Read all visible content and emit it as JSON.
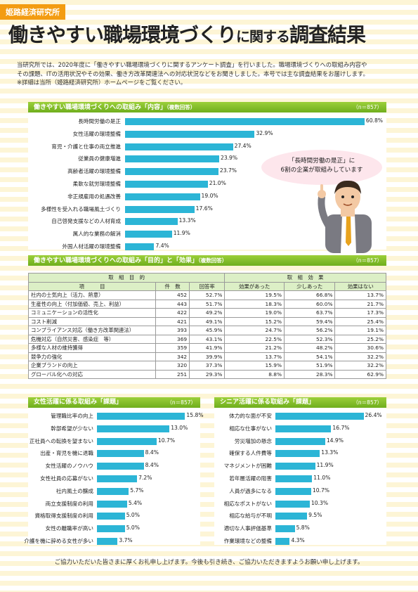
{
  "brand": "姫路経済研究所",
  "title": {
    "main": "働きやすい職場環境づくり",
    "mid": "に関する",
    "end": "調査結果"
  },
  "intro": [
    "当研究所では、2020年度に「働きやすい職場環境づくりに関するアンケート調査」を行いました。職場環境づくりへの取組み内容や",
    "その課題、ITの活用状況やその効果、働き方改革関連法への対応状況などをお聞きしました。本号では主な調査結果をお届けします。",
    "※詳細は当所（姫路経済研究所）ホームページをご覧ください。"
  ],
  "section1": {
    "heading": "働きやすい職場環境づくりへの取組み「内容」",
    "sub": "（複数回答）",
    "n": "（n＝857）",
    "bubble": {
      "line1": "「長時間労働の是正」に",
      "line2": "6割の企業が取組みしています"
    },
    "icon": "businessman-pointing-icon"
  },
  "section2": {
    "heading": "働きやすい職場環境づくりへの取組み「目的」と「効果」",
    "sub": "（複数回答）",
    "n": "（n＝857）",
    "group_purpose": "取　組　目　的",
    "group_effect": "取　組　効　果",
    "cols": [
      "項　　　目",
      "件　数",
      "回答率",
      "効果があった",
      "少しあった",
      "効果はない"
    ],
    "rows": [
      [
        "社内の士気向上（活力、熱意）",
        "452",
        "52.7%",
        "19.5%",
        "66.8%",
        "13.7%"
      ],
      [
        "生産性の向上（付加価値、売上、利益）",
        "443",
        "51.7%",
        "18.3%",
        "60.0%",
        "21.7%"
      ],
      [
        "コミュニケーションの活性化",
        "422",
        "49.2%",
        "19.0%",
        "63.7%",
        "17.3%"
      ],
      [
        "コスト削減",
        "421",
        "49.1%",
        "15.2%",
        "59.4%",
        "25.4%"
      ],
      [
        "コンプライアンス対応（働き方改革関連法）",
        "393",
        "45.9%",
        "24.7%",
        "56.2%",
        "19.1%"
      ],
      [
        "危機対応（自然災害、感染症　等）",
        "369",
        "43.1%",
        "22.5%",
        "52.3%",
        "25.2%"
      ],
      [
        "多様な人材の維持獲得",
        "359",
        "41.9%",
        "21.2%",
        "48.2%",
        "30.6%"
      ],
      [
        "競争力の強化",
        "342",
        "39.9%",
        "13.7%",
        "54.1%",
        "32.2%"
      ],
      [
        "企業ブランドの向上",
        "320",
        "37.3%",
        "15.9%",
        "51.9%",
        "32.2%"
      ],
      [
        "グローバル化への対応",
        "251",
        "29.3%",
        "8.8%",
        "28.3%",
        "62.9%"
      ]
    ]
  },
  "section3": {
    "heading": "女性活躍に係る取組み「課題」",
    "n": "（n＝857）"
  },
  "section4": {
    "heading": "シニア活躍に係る取組み「課題」",
    "n": "（n＝857）"
  },
  "chart_data": [
    {
      "type": "bar",
      "orientation": "horizontal",
      "categories": [
        "長時間労働の是正",
        "女性活躍の環境整備",
        "育児・介護と仕事の両立推進",
        "従業員の健康増進",
        "高齢者活躍の環境整備",
        "柔軟な就労環境整備",
        "非正規雇用の処遇改善",
        "多様性を受入れる職場風土づくり",
        "自己啓発支援などの人材育成",
        "属人的な業務の解消",
        "外国人材活躍の環境整備"
      ],
      "values": [
        60.8,
        32.9,
        27.4,
        23.9,
        23.7,
        21.0,
        19.0,
        17.6,
        13.3,
        11.9,
        7.4
      ],
      "labels": [
        "60.8%",
        "32.9%",
        "27.4%",
        "23.9%",
        "23.7%",
        "21.0%",
        "19.0%",
        "17.6%",
        "13.3%",
        "11.9%",
        "7.4%"
      ],
      "xlim": [
        0,
        61
      ],
      "color": "#2cb5d6"
    },
    {
      "type": "bar",
      "orientation": "horizontal",
      "categories": [
        "管理職比率の向上",
        "幹部希望が少ない",
        "正社員への転換を望まない",
        "出産・育児を機に退職",
        "女性活躍のノウハウ",
        "女性社員の応募がない",
        "社内風土の醸成",
        "両立支援制度の利用",
        "資格取得支援制度の利用",
        "女性の離職率が高い",
        "介護を機に辞める女性が多い"
      ],
      "values": [
        15.8,
        13.0,
        10.7,
        8.4,
        8.4,
        7.2,
        5.7,
        5.4,
        5.0,
        5.0,
        3.7
      ],
      "labels": [
        "15.8%",
        "13.0%",
        "10.7%",
        "8.4%",
        "8.4%",
        "7.2%",
        "5.7%",
        "5.4%",
        "5.0%",
        "5.0%",
        "3.7%"
      ],
      "xlim": [
        0,
        16
      ],
      "color": "#2cb5d6"
    },
    {
      "type": "bar",
      "orientation": "horizontal",
      "categories": [
        "体力的な面が不安",
        "相応な仕事がない",
        "労災増加の懸念",
        "確保する人件費等",
        "マネジメントが困難",
        "若年層活躍の阻害",
        "人員が過多になる",
        "相応なポストがない",
        "相応な給与が不明",
        "適切な人事評価基準",
        "作業環境などの整備"
      ],
      "values": [
        26.4,
        16.7,
        14.9,
        13.3,
        11.9,
        11.0,
        10.7,
        10.3,
        9.5,
        5.8,
        4.3
      ],
      "labels": [
        "26.4%",
        "16.7%",
        "14.9%",
        "13.3%",
        "11.9%",
        "11.0%",
        "10.7%",
        "10.3%",
        "9.5%",
        "5.8%",
        "4.3%"
      ],
      "xlim": [
        0,
        26.5
      ],
      "color": "#2cb5d6"
    }
  ],
  "footer": "ご協力いただいた皆さまに厚くお礼申し上げます。今後も引き続き、ご協力いただきますようお願い申し上げます。"
}
